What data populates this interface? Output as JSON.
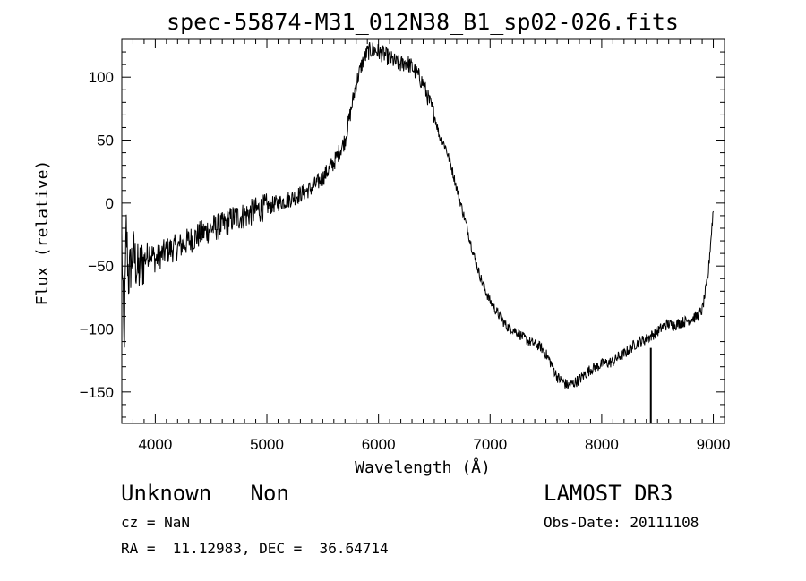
{
  "chart_data": {
    "type": "line",
    "title": "spec-55874-M31_012N38_B1_sp02-026.fits",
    "xlabel": "Wavelength (Å)",
    "ylabel": "Flux (relative)",
    "xlim": [
      3700,
      9100
    ],
    "ylim": [
      -175,
      130
    ],
    "xticks": [
      4000,
      5000,
      6000,
      7000,
      8000,
      9000
    ],
    "yticks": [
      -150,
      -100,
      -50,
      0,
      50,
      100
    ],
    "xtick_labels": [
      "4000",
      "5000",
      "6000",
      "7000",
      "8000",
      "9000"
    ],
    "ytick_labels": [
      "−150",
      "−100",
      "−50",
      "0",
      "50",
      "100"
    ],
    "grid": false,
    "series": [
      {
        "x": [
          3700,
          3720,
          3740,
          3760,
          3780,
          3800,
          3850,
          3900,
          3950,
          4000,
          4100,
          4200,
          4300,
          4400,
          4500,
          4600,
          4700,
          4800,
          4900,
          5000,
          5100,
          5200,
          5300,
          5400,
          5500,
          5600,
          5700,
          5750,
          5800,
          5850,
          5900,
          5950,
          6000,
          6050,
          6100,
          6150,
          6200,
          6250,
          6300,
          6350,
          6400,
          6450,
          6500,
          6550,
          6600,
          6650,
          6700,
          6750,
          6800,
          6850,
          6900,
          6950,
          7000,
          7050,
          7100,
          7150,
          7200,
          7250,
          7300,
          7350,
          7400,
          7450,
          7500,
          7550,
          7600,
          7650,
          7700,
          7750,
          7800,
          7850,
          7900,
          7950,
          8000,
          8050,
          8100,
          8150,
          8200,
          8250,
          8300,
          8350,
          8400,
          8450,
          8500,
          8550,
          8600,
          8650,
          8700,
          8750,
          8800,
          8850,
          8900,
          8950,
          9000
        ],
        "y": [
          -30,
          -120,
          -20,
          -60,
          -50,
          -40,
          -55,
          -45,
          -38,
          -45,
          -38,
          -35,
          -30,
          -25,
          -20,
          -18,
          -12,
          -10,
          -6,
          -3,
          0,
          3,
          7,
          12,
          20,
          32,
          50,
          72,
          95,
          110,
          120,
          122,
          120,
          118,
          115,
          112,
          110,
          112,
          108,
          102,
          95,
          82,
          70,
          52,
          45,
          30,
          12,
          -5,
          -22,
          -40,
          -55,
          -68,
          -78,
          -85,
          -92,
          -98,
          -100,
          -103,
          -107,
          -110,
          -112,
          -114,
          -120,
          -128,
          -138,
          -142,
          -145,
          -143,
          -140,
          -136,
          -132,
          -130,
          -128,
          -127,
          -126,
          -122,
          -120,
          -116,
          -112,
          -110,
          -108,
          -105,
          -102,
          -98,
          -96,
          -97,
          -95,
          -94,
          -92,
          -90,
          -85,
          -60,
          -5
        ]
      }
    ],
    "annotations": [
      {
        "text": "Unknown   Non"
      },
      {
        "text": "cz = NaN"
      },
      {
        "text": "RA =  11.12983, DEC =  36.64714"
      },
      {
        "text": "LAMOST DR3"
      },
      {
        "text": "Obs-Date: 20111108"
      }
    ]
  },
  "info": {
    "class_text": "Unknown   Non",
    "cz_text": "cz = NaN",
    "coords_text": "RA =  11.12983, DEC =  36.64714",
    "survey_text": "LAMOST DR3",
    "obsdate_text": "Obs-Date: 20111108"
  }
}
